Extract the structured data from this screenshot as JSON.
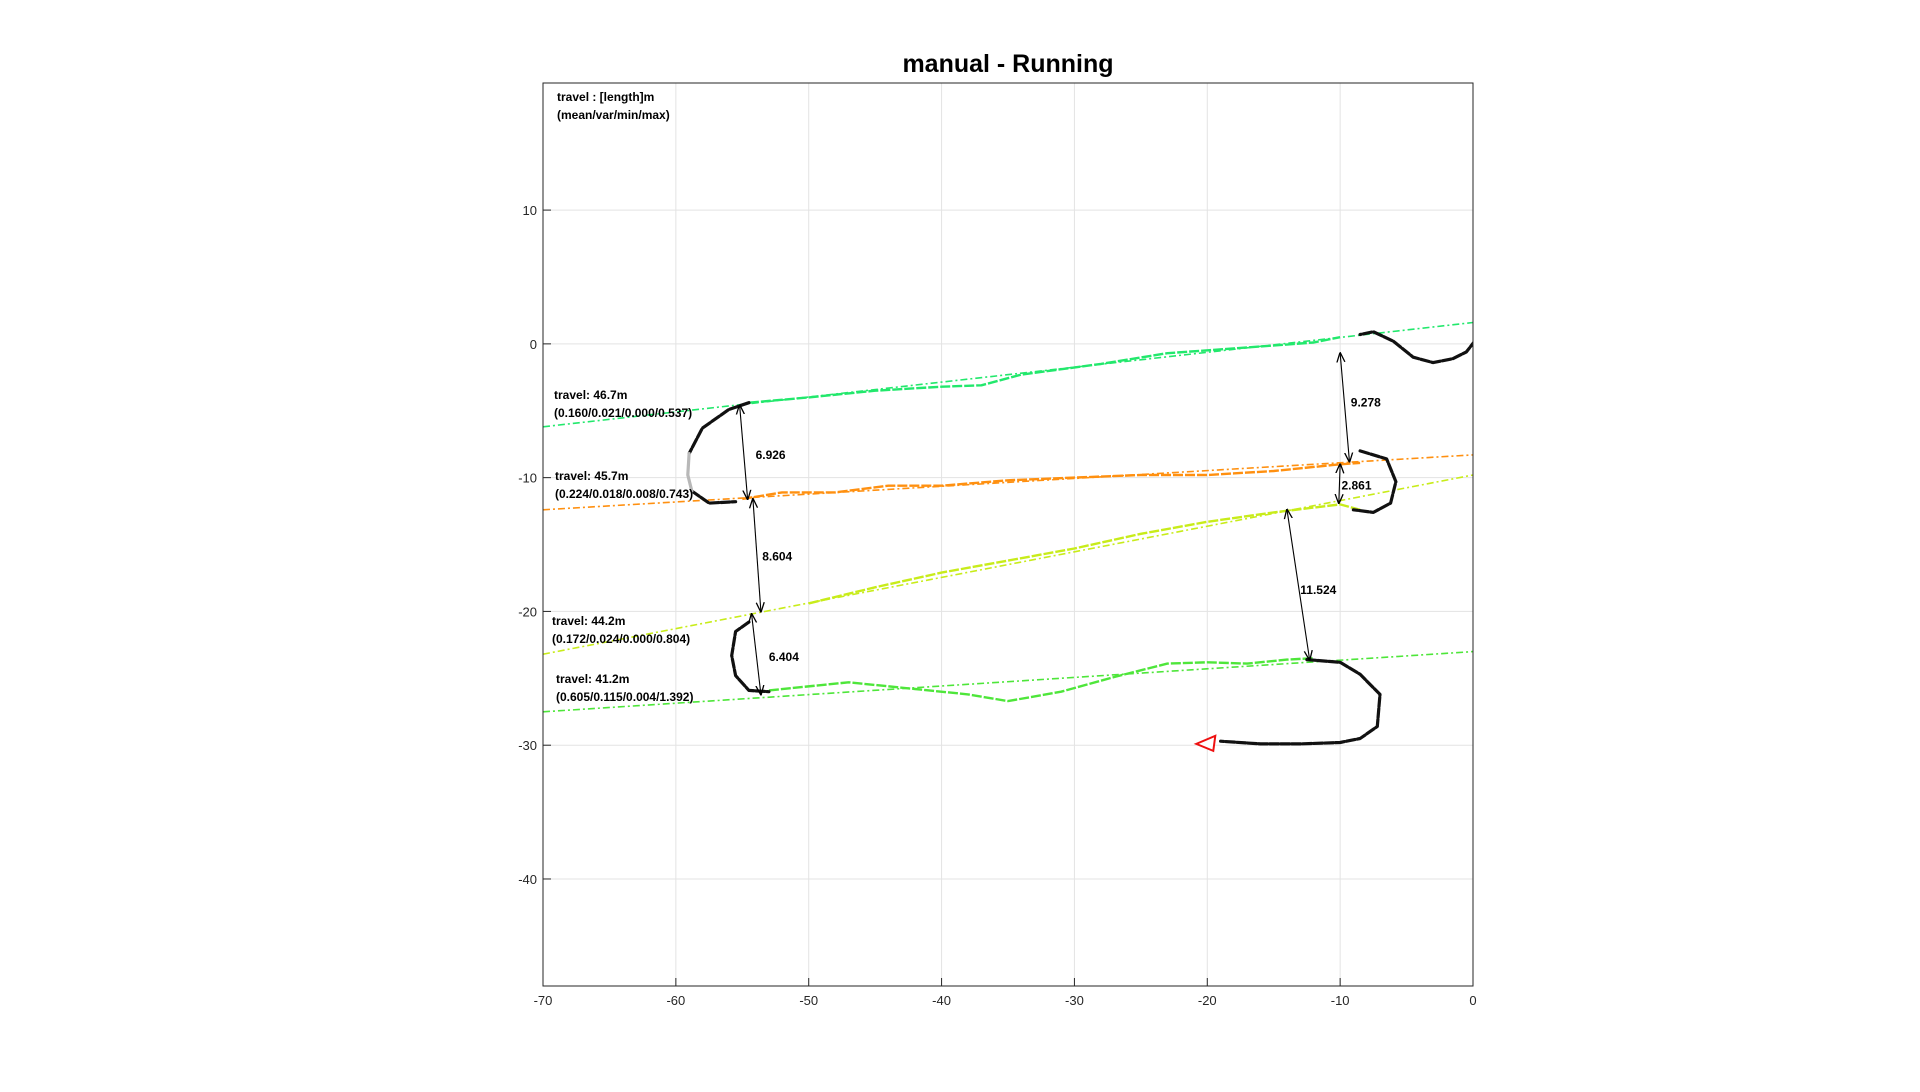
{
  "chart_data": {
    "type": "line",
    "title": "manual - Running",
    "xlabel": "",
    "ylabel": "",
    "xlim": [
      -70,
      0
    ],
    "ylim": [
      -48,
      19.5
    ],
    "grid": true,
    "xticks": [
      -70,
      -60,
      -50,
      -40,
      -30,
      -20,
      -10,
      0
    ],
    "yticks": [
      -40,
      -30,
      -20,
      -10,
      0,
      10
    ],
    "legend_header": [
      "travel : [length]m",
      "(mean/var/min/max)"
    ],
    "lanes": [
      {
        "color": "#22e86c",
        "ref_line": [
          [
            -70,
            -6.2
          ],
          [
            0,
            1.6
          ]
        ],
        "track": [
          [
            -54.5,
            -4.4
          ],
          [
            -50,
            -4.0
          ],
          [
            -45,
            -3.5
          ],
          [
            -40,
            -3.2
          ],
          [
            -37,
            -3.1
          ],
          [
            -34,
            -2.3
          ],
          [
            -28,
            -1.5
          ],
          [
            -23,
            -0.7
          ],
          [
            -16,
            -0.2
          ],
          [
            -12,
            0.1
          ],
          [
            -10,
            0.5
          ]
        ],
        "label": [
          "travel: 46.7m",
          "(0.160/0.021/0.000/0.537)"
        ]
      },
      {
        "color": "#ff9010",
        "ref_line": [
          [
            -70,
            -12.4
          ],
          [
            0,
            -8.3
          ]
        ],
        "track": [
          [
            -55,
            -11.6
          ],
          [
            -52,
            -11.1
          ],
          [
            -48,
            -11.1
          ],
          [
            -44,
            -10.6
          ],
          [
            -40,
            -10.6
          ],
          [
            -35,
            -10.2
          ],
          [
            -30,
            -10.0
          ],
          [
            -25,
            -9.8
          ],
          [
            -20,
            -9.8
          ],
          [
            -15,
            -9.5
          ],
          [
            -10,
            -9.0
          ],
          [
            -8.5,
            -8.9
          ]
        ],
        "label": [
          "travel: 45.7m",
          "(0.224/0.018/0.008/0.743)"
        ]
      },
      {
        "color": "#c8ec1a",
        "ref_line": [
          [
            -70,
            -23.2
          ],
          [
            0,
            -9.8
          ]
        ],
        "track": [
          [
            -50,
            -19.4
          ],
          [
            -45,
            -18.2
          ],
          [
            -40,
            -17.1
          ],
          [
            -35,
            -16.2
          ],
          [
            -30,
            -15.3
          ],
          [
            -25,
            -14.2
          ],
          [
            -20,
            -13.3
          ],
          [
            -15,
            -12.6
          ],
          [
            -10,
            -12.0
          ],
          [
            -8.5,
            -12.4
          ]
        ],
        "label": [
          "travel: 44.2m",
          "(0.172/0.024/0.000/0.804)"
        ]
      },
      {
        "color": "#4ee63a",
        "ref_line": [
          [
            -70,
            -27.5
          ],
          [
            0,
            -23.0
          ]
        ],
        "track": [
          [
            -53,
            -25.9
          ],
          [
            -51,
            -25.7
          ],
          [
            -47,
            -25.3
          ],
          [
            -42,
            -25.8
          ],
          [
            -38,
            -26.2
          ],
          [
            -35,
            -26.7
          ],
          [
            -31,
            -26.0
          ],
          [
            -27,
            -24.9
          ],
          [
            -23,
            -23.9
          ],
          [
            -20,
            -23.8
          ],
          [
            -17,
            -23.9
          ],
          [
            -14,
            -23.6
          ],
          [
            -12,
            -23.5
          ]
        ],
        "label": [
          "travel: 41.2m",
          "(0.605/0.115/0.004/1.392)"
        ]
      }
    ],
    "turns": {
      "color": "#111111",
      "segments": [
        [
          [
            1,
            -0.1
          ],
          [
            0.2,
            0.3
          ],
          [
            -0.5,
            -0.6
          ],
          [
            -1.5,
            -1.1
          ],
          [
            -3,
            -1.4
          ],
          [
            -4.5,
            -1.0
          ],
          [
            -6,
            0.2
          ],
          [
            -7.5,
            0.9
          ],
          [
            -8.5,
            0.7
          ]
        ],
        [
          [
            -54.5,
            -4.4
          ],
          [
            -56,
            -4.9
          ],
          [
            -58,
            -6.3
          ],
          [
            -59,
            -8.2
          ]
        ],
        [
          [
            -58.8,
            -11.0
          ],
          [
            -57.5,
            -11.9
          ],
          [
            -55.5,
            -11.8
          ]
        ],
        [
          [
            -8.5,
            -8.0
          ],
          [
            -6.5,
            -8.6
          ],
          [
            -5.8,
            -10.3
          ],
          [
            -6.2,
            -11.9
          ],
          [
            -7.5,
            -12.6
          ],
          [
            -9,
            -12.4
          ]
        ],
        [
          [
            -54.5,
            -20.8
          ],
          [
            -55.5,
            -21.5
          ],
          [
            -55.8,
            -23.3
          ],
          [
            -55.5,
            -24.8
          ],
          [
            -54.5,
            -25.9
          ],
          [
            -53,
            -26.0
          ]
        ],
        [
          [
            -12.5,
            -23.6
          ],
          [
            -10,
            -23.8
          ],
          [
            -8.5,
            -24.7
          ],
          [
            -7,
            -26.2
          ],
          [
            -7.2,
            -28.6
          ],
          [
            -8.5,
            -29.5
          ],
          [
            -10,
            -29.8
          ],
          [
            -13,
            -29.9
          ],
          [
            -16,
            -29.9
          ],
          [
            -19,
            -29.7
          ]
        ]
      ],
      "gray_segment": [
        [
          -59,
          -8.2
        ],
        [
          -59.1,
          -9.8
        ],
        [
          -58.8,
          -11.0
        ]
      ]
    },
    "distances": [
      {
        "from": [
          -55.2,
          -4.6
        ],
        "to": [
          -54.6,
          -11.6
        ],
        "label": "6.926",
        "label_pos": [
          -54.0,
          -8.3
        ]
      },
      {
        "from": [
          -54.2,
          -11.6
        ],
        "to": [
          -53.6,
          -20.0
        ],
        "label": "8.604",
        "label_pos": [
          -53.5,
          -15.9
        ]
      },
      {
        "from": [
          -54.3,
          -20.2
        ],
        "to": [
          -53.6,
          -26.2
        ],
        "label": "6.404",
        "label_pos": [
          -53.0,
          -23.4
        ]
      },
      {
        "from": [
          -10.0,
          -0.7
        ],
        "to": [
          -9.3,
          -8.8
        ],
        "label": "9.278",
        "label_pos": [
          -9.2,
          -4.4
        ]
      },
      {
        "from": [
          -10.0,
          -9.0
        ],
        "to": [
          -10.1,
          -11.9
        ],
        "label": "2.861",
        "label_pos": [
          -9.9,
          -10.6
        ]
      },
      {
        "from": [
          -14.0,
          -12.4
        ],
        "to": [
          -12.3,
          -23.6
        ],
        "label": "11.524",
        "label_pos": [
          -13.0,
          -18.4
        ]
      }
    ],
    "end_marker": {
      "shape": "triangle",
      "color": "#ee1111",
      "at": [
        -20.0,
        -29.9
      ]
    }
  }
}
